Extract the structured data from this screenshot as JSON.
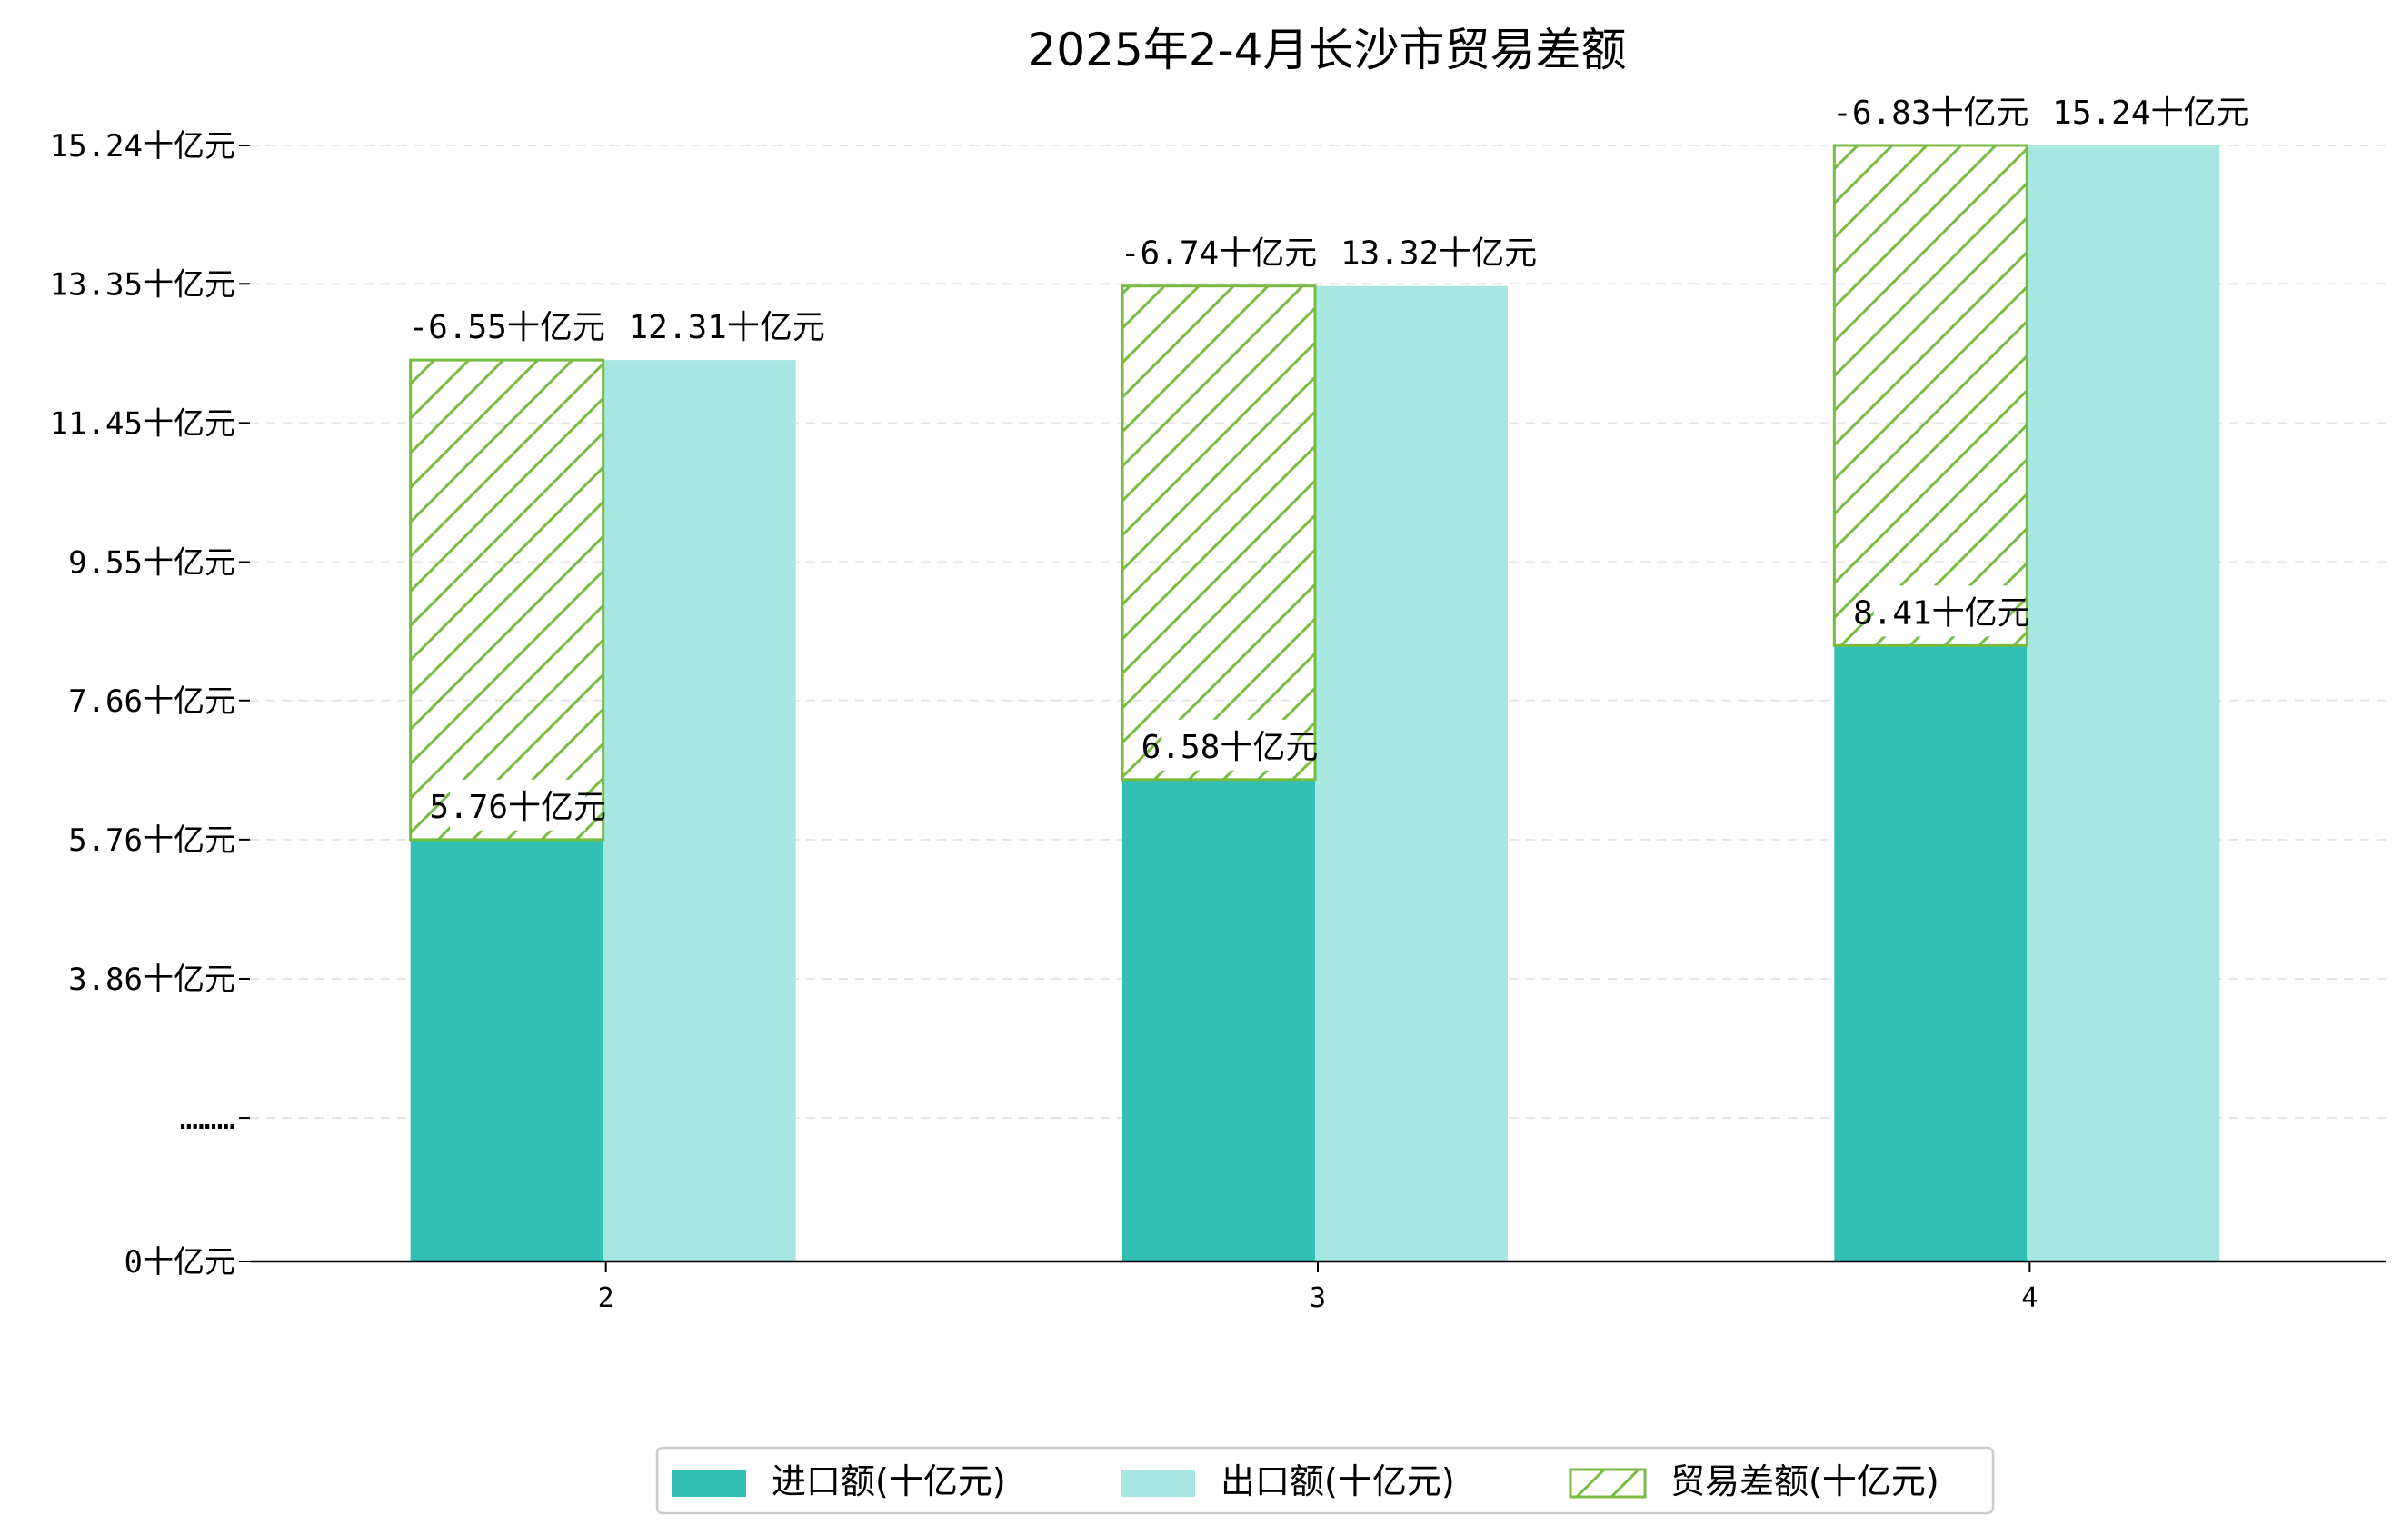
{
  "chart_data": {
    "type": "bar",
    "title": "2025年2-4月长沙市贸易差额",
    "xlabel": "",
    "ylabel": "",
    "categories": [
      "2",
      "3",
      "4"
    ],
    "ylim": [
      0,
      15.24
    ],
    "y_axis_break": true,
    "y_ticks": [
      {
        "value": 0,
        "label": "0十亿元"
      },
      {
        "value": 1.96,
        "label": "………"
      },
      {
        "value": 3.86,
        "label": "3.86十亿元"
      },
      {
        "value": 5.76,
        "label": "5.76十亿元"
      },
      {
        "value": 7.66,
        "label": "7.66十亿元"
      },
      {
        "value": 9.55,
        "label": "9.55十亿元"
      },
      {
        "value": 11.45,
        "label": "11.45十亿元"
      },
      {
        "value": 13.35,
        "label": "13.35十亿元"
      },
      {
        "value": 15.24,
        "label": "15.24十亿元"
      }
    ],
    "series": [
      {
        "name": "进口额(十亿元)",
        "values": [
          5.76,
          6.58,
          8.41
        ],
        "labels": [
          "5.76十亿元",
          "6.58十亿元",
          "8.41十亿元"
        ],
        "color": "#31c0b3"
      },
      {
        "name": "出口额(十亿元)",
        "values": [
          12.31,
          13.32,
          15.24
        ],
        "labels": [
          "12.31十亿元",
          "13.32十亿元",
          "15.24十亿元"
        ],
        "color": "#a8e6e1"
      },
      {
        "name": "贸易差额(十亿元)",
        "values": [
          -6.55,
          -6.74,
          -6.83
        ],
        "labels": [
          "-6.55十亿元",
          "-6.74十亿元",
          "-6.83十亿元"
        ],
        "color": "#77bb41"
      }
    ],
    "grid": true,
    "legend_position": "bottom-center"
  }
}
